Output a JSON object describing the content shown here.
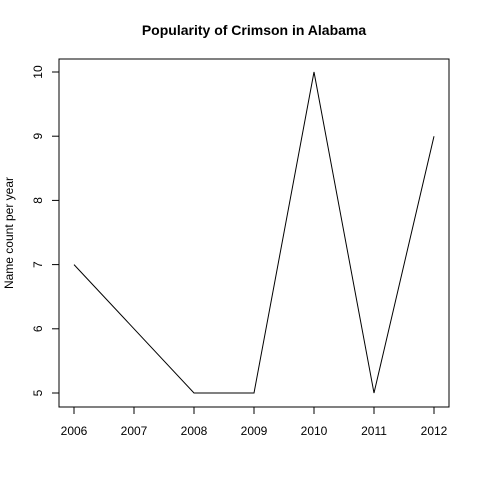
{
  "chart_data": {
    "type": "line",
    "title": "Popularity of Crimson in Alabama",
    "xlabel": "",
    "ylabel": "Name count per year",
    "x": [
      2006,
      2007,
      2008,
      2009,
      2010,
      2011,
      2012
    ],
    "series": [
      {
        "values": [
          7,
          6,
          5,
          5,
          10,
          5,
          9
        ]
      }
    ],
    "xlim": [
      2006,
      2012
    ],
    "ylim": [
      5,
      10
    ],
    "xticks": [
      "2006",
      "2007",
      "2008",
      "2009",
      "2010",
      "2011",
      "2012"
    ],
    "yticks": [
      "5",
      "6",
      "7",
      "8",
      "9",
      "10"
    ],
    "grid": false,
    "legend": "none"
  }
}
